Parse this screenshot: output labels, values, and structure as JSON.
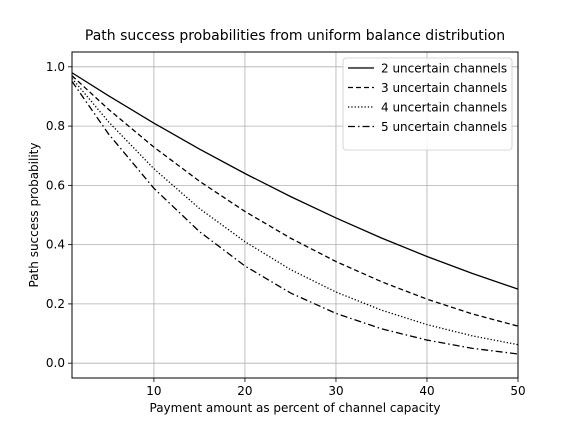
{
  "chart_data": {
    "type": "line",
    "title": "Path success probabilities from uniform balance distribution",
    "xlabel": "Payment amount as percent of channel capacity",
    "ylabel": "Path success probability",
    "xlim": [
      1,
      50
    ],
    "ylim": [
      -0.05,
      1.05
    ],
    "xticks": [
      10,
      20,
      30,
      40,
      50
    ],
    "yticks": [
      0.0,
      0.2,
      0.4,
      0.6,
      0.8,
      1.0
    ],
    "xtick_labels": [
      "10",
      "20",
      "30",
      "40",
      "50"
    ],
    "ytick_labels": [
      "0.0",
      "0.2",
      "0.4",
      "0.6",
      "0.8",
      "1.0"
    ],
    "grid": true,
    "legend_position": "top-right",
    "x": [
      1,
      5,
      10,
      15,
      20,
      25,
      30,
      35,
      40,
      45,
      50
    ],
    "series": [
      {
        "name": "2 uncertain channels",
        "line_style": "solid",
        "values": [
          0.98,
          0.9025,
          0.81,
          0.7225,
          0.64,
          0.5625,
          0.49,
          0.4225,
          0.36,
          0.3025,
          0.25
        ]
      },
      {
        "name": "3 uncertain channels",
        "line_style": "dashed",
        "values": [
          0.97,
          0.857,
          0.729,
          0.614,
          0.512,
          0.422,
          0.343,
          0.275,
          0.216,
          0.166,
          0.125
        ]
      },
      {
        "name": "4 uncertain channels",
        "line_style": "dotted",
        "values": [
          0.961,
          0.815,
          0.656,
          0.522,
          0.41,
          0.316,
          0.24,
          0.179,
          0.13,
          0.092,
          0.0625
        ]
      },
      {
        "name": "5 uncertain channels",
        "line_style": "dashdot",
        "values": [
          0.951,
          0.774,
          0.59,
          0.444,
          0.328,
          0.237,
          0.168,
          0.116,
          0.078,
          0.05,
          0.031
        ]
      }
    ]
  }
}
